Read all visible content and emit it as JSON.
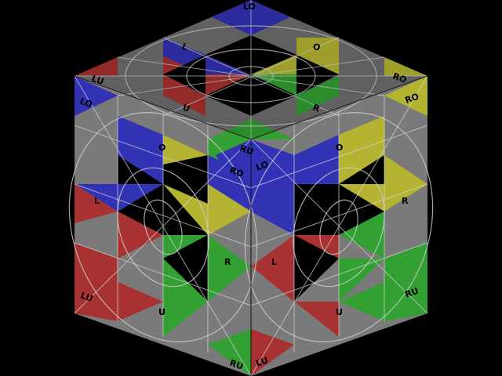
{
  "colors": {
    "background": "#000000",
    "gray": "#7a7a7a",
    "black": "#000000",
    "blue": "#3232b4",
    "yellow": "#b4b432",
    "red": "#a83232",
    "green": "#32a032",
    "line": "#cfcfcf"
  },
  "labels": {
    "top_lo": "LO",
    "top_lu": "LU",
    "top_ro": "RO",
    "top_l": "L",
    "top_o": "O",
    "top_u": "U",
    "top_r": "R",
    "top_ru": "RU",
    "left_lo": "LO",
    "left_o": "O",
    "left_l": "L",
    "left_r": "R",
    "left_lu": "LU",
    "left_u": "U",
    "left_ro": "RO",
    "left_ru": "RU",
    "right_lo": "LO",
    "right_o": "O",
    "right_l": "L",
    "right_r": "R",
    "right_ro": "RO",
    "right_ru": "RU",
    "right_u": "U",
    "right_lu": "LU"
  }
}
